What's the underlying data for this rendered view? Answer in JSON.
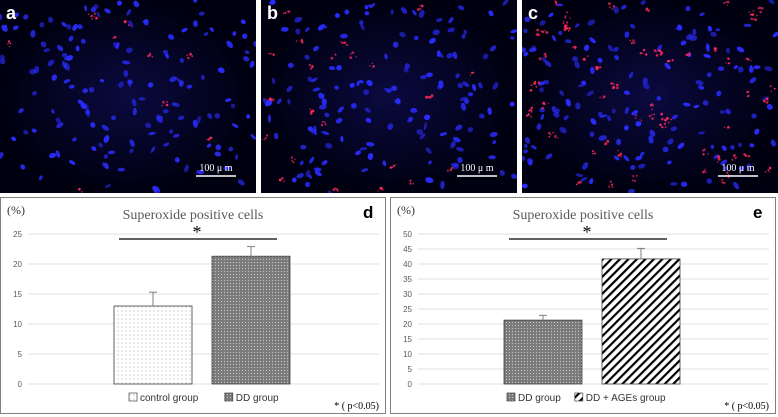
{
  "micrographs": [
    {
      "label": "a",
      "scale": "100 μ m"
    },
    {
      "label": "b",
      "scale": "100 μ m"
    },
    {
      "label": "c",
      "scale": "100 μ m"
    }
  ],
  "colors": {
    "nuclei": "#2a2cff",
    "stain": "#ff2a5a",
    "background": "#000010"
  },
  "chart_data": [
    {
      "type": "bar",
      "panel": "d",
      "title": "Superoxide positive cells",
      "ylabel": "(%)",
      "ylim": [
        0,
        25
      ],
      "yticks": [
        0,
        5,
        10,
        15,
        20,
        25
      ],
      "categories": [
        "control group",
        "DD group"
      ],
      "values": [
        13.0,
        21.3
      ],
      "errors": [
        2.3,
        1.6
      ],
      "patterns": [
        "dots-light",
        "dots-dense"
      ],
      "significance": "*",
      "note": "* ( p<0.05)",
      "grid": true,
      "legend_position": "bottom-center"
    },
    {
      "type": "bar",
      "panel": "e",
      "title": "Superoxide positive cells",
      "ylabel": "(%)",
      "ylim": [
        0,
        50
      ],
      "yticks": [
        0,
        5,
        10,
        15,
        20,
        25,
        30,
        35,
        40,
        45,
        50
      ],
      "categories": [
        "DD group",
        "DD + AGEs group"
      ],
      "values": [
        21.3,
        41.7
      ],
      "errors": [
        1.6,
        3.5
      ],
      "patterns": [
        "dots-dense",
        "diagonal"
      ],
      "significance": "*",
      "note": "* ( p<0.05)",
      "grid": true,
      "legend_position": "bottom-center"
    }
  ]
}
